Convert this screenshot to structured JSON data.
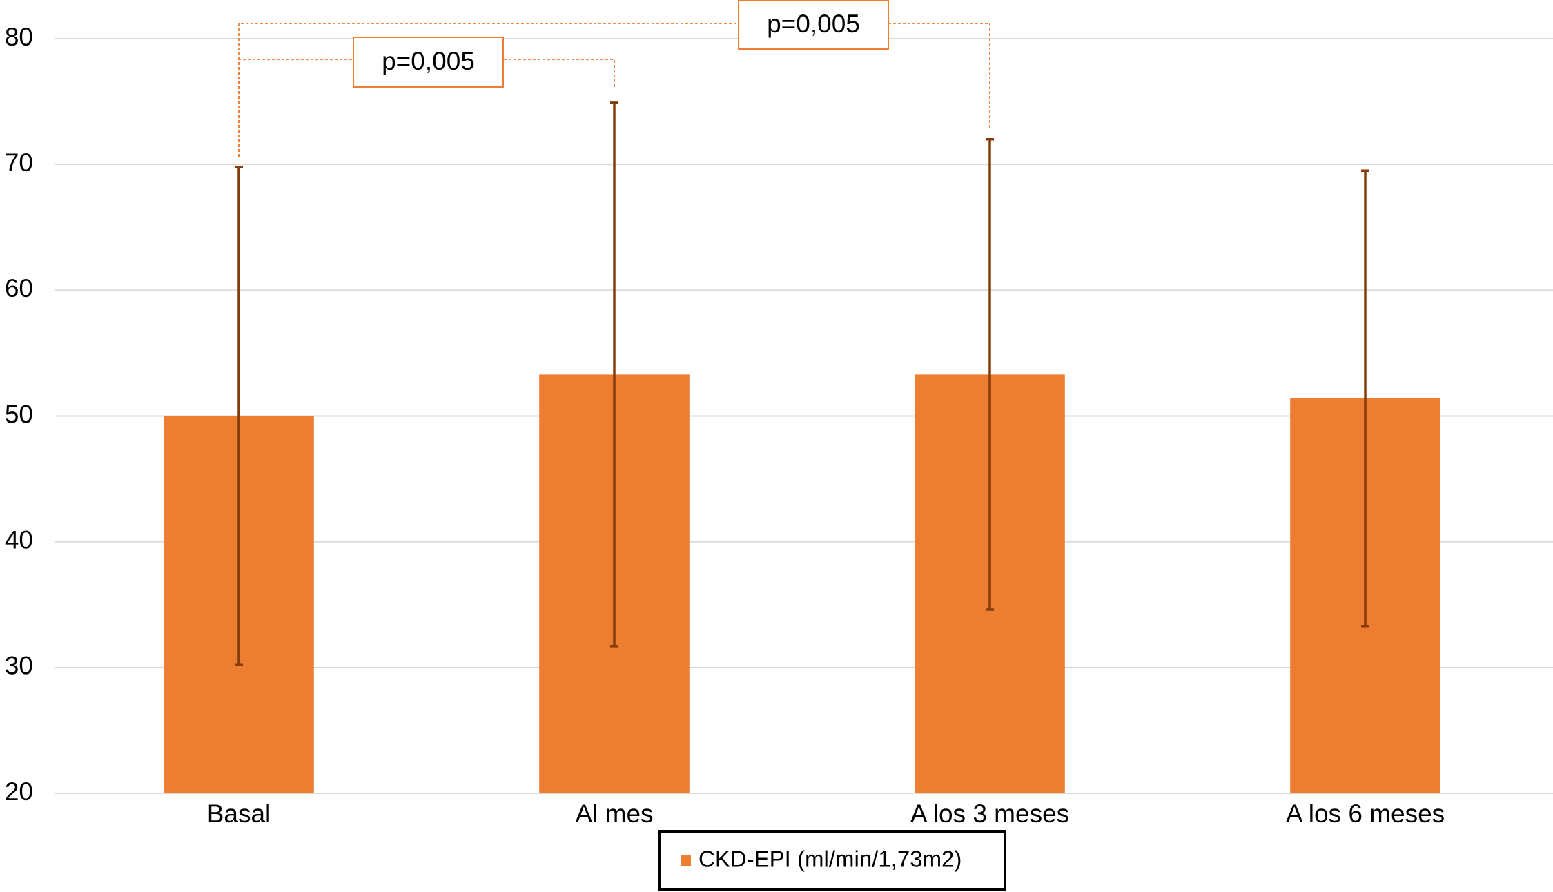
{
  "chart_data": {
    "type": "bar",
    "categories": [
      "Basal",
      "Al mes",
      "A los 3 meses",
      "A los 6 meses"
    ],
    "series": [
      {
        "name": "CKD-EPI (ml/min/1,73m2)",
        "color": "#ed7d31",
        "error_color": "#843c0c",
        "values": [
          50.0,
          53.3,
          53.3,
          51.4
        ],
        "errors": [
          19.8,
          21.6,
          18.7,
          18.1
        ]
      }
    ],
    "ylim": [
      20,
      80
    ],
    "yticks": [
      20,
      30,
      40,
      50,
      60,
      70,
      80
    ],
    "grid": true,
    "annotations": [
      "p=0,005",
      "p=0,005"
    ],
    "annotation_color": "#ed7d31",
    "legend": "bottom"
  }
}
